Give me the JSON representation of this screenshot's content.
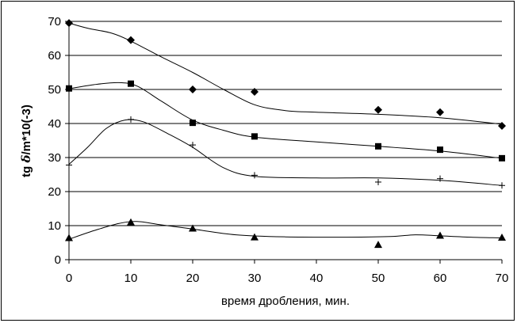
{
  "chart_data": {
    "type": "scatter",
    "xlabel": "время дробления, мин.",
    "ylabel_prefix": "tg ",
    "ylabel_delta": "δ",
    "ylabel_suffix": "/m*10(-3)",
    "xlim": [
      0,
      70
    ],
    "ylim": [
      0,
      70
    ],
    "x_ticks": [
      "0",
      "10",
      "20",
      "30",
      "40",
      "50",
      "60",
      "70"
    ],
    "y_ticks": [
      "0",
      "10",
      "20",
      "30",
      "40",
      "50",
      "60",
      "70"
    ],
    "grid": "horizontal",
    "legend": "none",
    "series": [
      {
        "marker": "diamond",
        "points": [
          [
            0,
            69.5
          ],
          [
            10,
            64.5
          ],
          [
            20,
            50
          ],
          [
            30,
            49.3
          ],
          [
            50,
            44
          ],
          [
            60,
            43.3
          ],
          [
            70,
            39.3
          ]
        ],
        "trend": [
          [
            0,
            69.5
          ],
          [
            3,
            68
          ],
          [
            7,
            66.5
          ],
          [
            10,
            64.2
          ],
          [
            15,
            59.5
          ],
          [
            20,
            55
          ],
          [
            25,
            50
          ],
          [
            30,
            45.5
          ],
          [
            35,
            43.8
          ],
          [
            40,
            43.3
          ],
          [
            50,
            42.7
          ],
          [
            60,
            41.7
          ],
          [
            70,
            39.8
          ]
        ]
      },
      {
        "marker": "square",
        "points": [
          [
            0,
            50.3
          ],
          [
            10,
            51.7
          ],
          [
            20,
            40.2
          ],
          [
            30,
            36.2
          ],
          [
            50,
            33.3
          ],
          [
            60,
            32.3
          ],
          [
            70,
            29.8
          ]
        ],
        "trend": [
          [
            0,
            50.2
          ],
          [
            4,
            51.4
          ],
          [
            8,
            52
          ],
          [
            11,
            51
          ],
          [
            15,
            46.5
          ],
          [
            20,
            41
          ],
          [
            25,
            38
          ],
          [
            30,
            36
          ],
          [
            40,
            34.6
          ],
          [
            50,
            33.3
          ],
          [
            60,
            31.9
          ],
          [
            70,
            29.8
          ]
        ]
      },
      {
        "marker": "plus",
        "points": [
          [
            0,
            27.8
          ],
          [
            10,
            41.2
          ],
          [
            20,
            33.7
          ],
          [
            30,
            24.8
          ],
          [
            50,
            22.8
          ],
          [
            60,
            23.8
          ],
          [
            70,
            21.8
          ]
        ],
        "trend": [
          [
            0,
            28
          ],
          [
            3,
            33
          ],
          [
            6,
            38.5
          ],
          [
            9,
            41
          ],
          [
            12,
            40.5
          ],
          [
            16,
            37
          ],
          [
            20,
            33
          ],
          [
            25,
            27
          ],
          [
            30,
            24.5
          ],
          [
            40,
            24
          ],
          [
            50,
            24
          ],
          [
            60,
            23.3
          ],
          [
            70,
            21.8
          ]
        ]
      },
      {
        "marker": "triangle",
        "points": [
          [
            0,
            6.4
          ],
          [
            10,
            11
          ],
          [
            20,
            9.2
          ],
          [
            30,
            6.6
          ],
          [
            50,
            4.4
          ],
          [
            60,
            7.1
          ],
          [
            70,
            6.5
          ]
        ],
        "trend": [
          [
            0,
            6
          ],
          [
            4,
            8.5
          ],
          [
            8,
            10.6
          ],
          [
            11,
            11.2
          ],
          [
            15,
            10.2
          ],
          [
            20,
            9
          ],
          [
            27,
            7.3
          ],
          [
            35,
            6.7
          ],
          [
            45,
            6.6
          ],
          [
            52,
            6.8
          ],
          [
            56,
            7.3
          ],
          [
            60,
            7
          ],
          [
            65,
            6.6
          ],
          [
            70,
            6.4
          ]
        ]
      }
    ]
  }
}
